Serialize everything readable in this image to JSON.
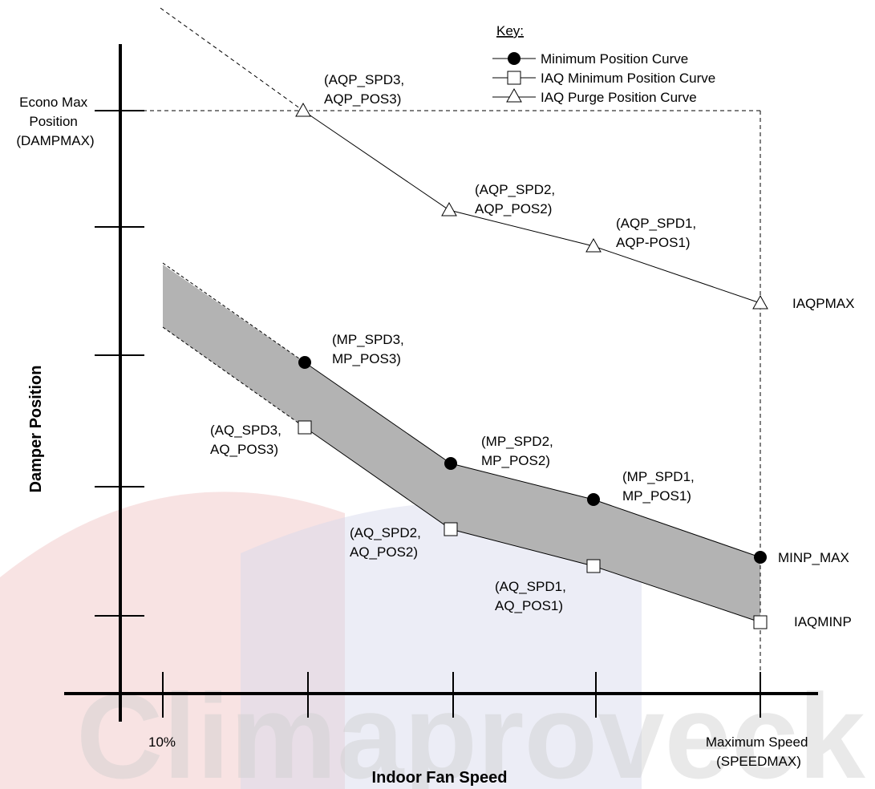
{
  "watermark_text": "Climaproveck",
  "key": {
    "title": "Key:",
    "items": [
      {
        "label": "Minimum Position Curve",
        "marker": "filled-circle"
      },
      {
        "label": "IAQ Minimum Position Curve",
        "marker": "open-square"
      },
      {
        "label": "IAQ Purge Position Curve",
        "marker": "open-triangle"
      }
    ]
  },
  "axes": {
    "y_title": "Damper Position",
    "x_title": "Indoor Fan Speed",
    "y_label_top": [
      "Econo Max",
      "Position",
      "(DAMPMAX)"
    ],
    "x_label_left": "10%",
    "x_label_right": [
      "Maximum Speed",
      "(SPEEDMAX)"
    ]
  },
  "points": {
    "aqp3": [
      "(AQP_SPD3,",
      "AQP_POS3)"
    ],
    "aqp2": [
      "(AQP_SPD2,",
      "AQP_POS2)"
    ],
    "aqp1": [
      "(AQP_SPD1,",
      "AQP-POS1)"
    ],
    "iaqpmax": "IAQPMAX",
    "mp3": [
      "(MP_SPD3,",
      "MP_POS3)"
    ],
    "mp2": [
      "(MP_SPD2,",
      "MP_POS2)"
    ],
    "mp1": [
      "(MP_SPD1,",
      "MP_POS1)"
    ],
    "minp_max": "MINP_MAX",
    "aq3": [
      "(AQ_SPD3,",
      "AQ_POS3)"
    ],
    "aq2": [
      "(AQ_SPD2,",
      "AQ_POS2)"
    ],
    "aq1": [
      "(AQ_SPD1,",
      "AQ_POS1)"
    ],
    "iaqminp": "IAQMINP"
  },
  "colors": {
    "band_fill": "#b3b3b3",
    "line": "#000000",
    "watermark_red": "#e8a8a8",
    "watermark_blue": "#b8bcd8"
  }
}
